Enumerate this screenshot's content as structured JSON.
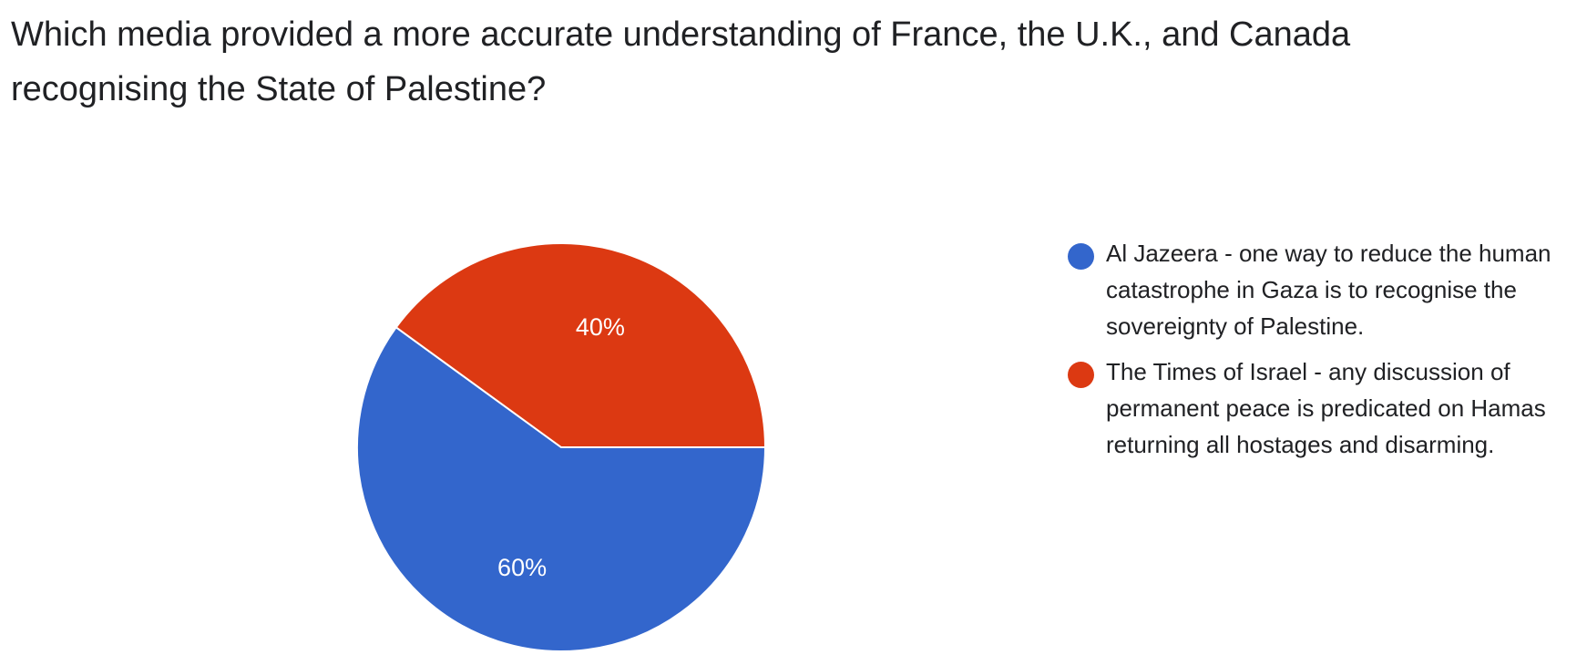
{
  "question": {
    "title": "Which media provided a more accurate understanding of France, the U.K., and Canada recognising the State of Palestine?"
  },
  "chart_data": {
    "type": "pie",
    "title": "Which media provided a more accurate understanding of France, the U.K., and Canada recognising the State of Palestine?",
    "slices": [
      {
        "name": "Al Jazeera - one way to reduce the human catastrophe in Gaza is to recognise the sovereignty of Palestine.",
        "value": 60,
        "label": "60%",
        "color": "#3366cc"
      },
      {
        "name": "The Times of Israel - any discussion of permanent peace is predicated on Hamas returning all hostages and disarming.",
        "value": 40,
        "label": "40%",
        "color": "#dc3912"
      }
    ],
    "legend": "right"
  }
}
